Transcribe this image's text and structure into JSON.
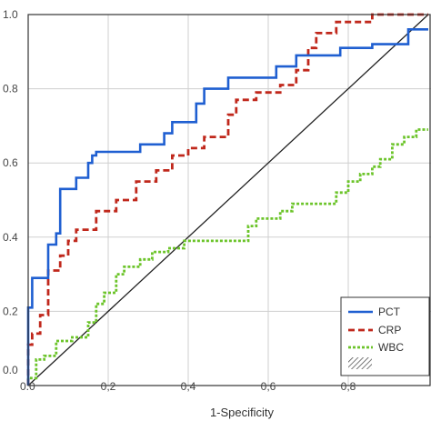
{
  "chart_data": {
    "type": "line",
    "title": "",
    "xlabel": "1-Specificity",
    "ylabel": "",
    "xlim": [
      0,
      1
    ],
    "ylim": [
      0,
      1
    ],
    "grid": true,
    "legend_position": "bottom-right",
    "x_ticks": [
      {
        "value": 0.0,
        "label": "0.0"
      },
      {
        "value": 0.2,
        "label": "0,2"
      },
      {
        "value": 0.4,
        "label": "0,4"
      },
      {
        "value": 0.6,
        "label": "0,6"
      },
      {
        "value": 0.8,
        "label": "0,8"
      }
    ],
    "y_ticks": [
      {
        "value": 0.0,
        "label": "0.0"
      },
      {
        "value": 0.2,
        "label": "0.2"
      },
      {
        "value": 0.4,
        "label": "0.4"
      },
      {
        "value": 0.6,
        "label": "0.6"
      },
      {
        "value": 0.8,
        "label": "0.8"
      },
      {
        "value": 1.0,
        "label": "1.0"
      }
    ],
    "reference_line": {
      "x": [
        0,
        1
      ],
      "y": [
        0,
        1
      ],
      "color": "#222222"
    },
    "series": [
      {
        "name": "PCT",
        "color": "#1f5fd1",
        "style": "solid",
        "points": [
          [
            0,
            0
          ],
          [
            0,
            0.21
          ],
          [
            0.01,
            0.21
          ],
          [
            0.01,
            0.29
          ],
          [
            0.05,
            0.29
          ],
          [
            0.05,
            0.38
          ],
          [
            0.07,
            0.38
          ],
          [
            0.07,
            0.41
          ],
          [
            0.08,
            0.41
          ],
          [
            0.08,
            0.53
          ],
          [
            0.12,
            0.53
          ],
          [
            0.12,
            0.56
          ],
          [
            0.15,
            0.56
          ],
          [
            0.15,
            0.6
          ],
          [
            0.16,
            0.6
          ],
          [
            0.16,
            0.62
          ],
          [
            0.17,
            0.62
          ],
          [
            0.17,
            0.63
          ],
          [
            0.28,
            0.63
          ],
          [
            0.28,
            0.65
          ],
          [
            0.34,
            0.65
          ],
          [
            0.34,
            0.68
          ],
          [
            0.36,
            0.68
          ],
          [
            0.36,
            0.71
          ],
          [
            0.42,
            0.71
          ],
          [
            0.42,
            0.76
          ],
          [
            0.44,
            0.76
          ],
          [
            0.44,
            0.8
          ],
          [
            0.5,
            0.8
          ],
          [
            0.5,
            0.83
          ],
          [
            0.62,
            0.83
          ],
          [
            0.62,
            0.86
          ],
          [
            0.67,
            0.86
          ],
          [
            0.67,
            0.89
          ],
          [
            0.78,
            0.89
          ],
          [
            0.78,
            0.91
          ],
          [
            0.86,
            0.91
          ],
          [
            0.86,
            0.92
          ],
          [
            0.95,
            0.92
          ],
          [
            0.95,
            0.96
          ],
          [
            1.0,
            0.96
          ]
        ]
      },
      {
        "name": "CRP",
        "color": "#c0281c",
        "style": "dashed",
        "points": [
          [
            0,
            0
          ],
          [
            0,
            0.11
          ],
          [
            0.01,
            0.11
          ],
          [
            0.01,
            0.14
          ],
          [
            0.03,
            0.14
          ],
          [
            0.03,
            0.19
          ],
          [
            0.05,
            0.19
          ],
          [
            0.05,
            0.31
          ],
          [
            0.08,
            0.31
          ],
          [
            0.08,
            0.35
          ],
          [
            0.1,
            0.35
          ],
          [
            0.1,
            0.39
          ],
          [
            0.12,
            0.39
          ],
          [
            0.12,
            0.42
          ],
          [
            0.17,
            0.42
          ],
          [
            0.17,
            0.47
          ],
          [
            0.22,
            0.47
          ],
          [
            0.22,
            0.5
          ],
          [
            0.27,
            0.5
          ],
          [
            0.27,
            0.55
          ],
          [
            0.32,
            0.55
          ],
          [
            0.32,
            0.58
          ],
          [
            0.36,
            0.58
          ],
          [
            0.36,
            0.62
          ],
          [
            0.4,
            0.62
          ],
          [
            0.4,
            0.64
          ],
          [
            0.44,
            0.64
          ],
          [
            0.44,
            0.67
          ],
          [
            0.5,
            0.67
          ],
          [
            0.5,
            0.73
          ],
          [
            0.52,
            0.73
          ],
          [
            0.52,
            0.77
          ],
          [
            0.57,
            0.77
          ],
          [
            0.57,
            0.79
          ],
          [
            0.63,
            0.79
          ],
          [
            0.63,
            0.81
          ],
          [
            0.67,
            0.81
          ],
          [
            0.67,
            0.85
          ],
          [
            0.7,
            0.85
          ],
          [
            0.7,
            0.91
          ],
          [
            0.72,
            0.91
          ],
          [
            0.72,
            0.95
          ],
          [
            0.77,
            0.95
          ],
          [
            0.77,
            0.98
          ],
          [
            0.86,
            0.98
          ],
          [
            0.86,
            1.0
          ],
          [
            1.0,
            1.0
          ]
        ]
      },
      {
        "name": "WBC",
        "color": "#6cc42a",
        "style": "dotted",
        "points": [
          [
            0,
            0
          ],
          [
            0,
            0.02
          ],
          [
            0.02,
            0.02
          ],
          [
            0.02,
            0.07
          ],
          [
            0.04,
            0.07
          ],
          [
            0.04,
            0.08
          ],
          [
            0.07,
            0.08
          ],
          [
            0.07,
            0.12
          ],
          [
            0.11,
            0.12
          ],
          [
            0.11,
            0.13
          ],
          [
            0.15,
            0.13
          ],
          [
            0.15,
            0.17
          ],
          [
            0.17,
            0.17
          ],
          [
            0.17,
            0.22
          ],
          [
            0.19,
            0.22
          ],
          [
            0.19,
            0.25
          ],
          [
            0.22,
            0.25
          ],
          [
            0.22,
            0.3
          ],
          [
            0.24,
            0.3
          ],
          [
            0.24,
            0.32
          ],
          [
            0.28,
            0.32
          ],
          [
            0.28,
            0.34
          ],
          [
            0.31,
            0.34
          ],
          [
            0.31,
            0.36
          ],
          [
            0.35,
            0.36
          ],
          [
            0.35,
            0.37
          ],
          [
            0.39,
            0.37
          ],
          [
            0.39,
            0.39
          ],
          [
            0.55,
            0.39
          ],
          [
            0.55,
            0.43
          ],
          [
            0.57,
            0.43
          ],
          [
            0.57,
            0.45
          ],
          [
            0.63,
            0.45
          ],
          [
            0.63,
            0.47
          ],
          [
            0.66,
            0.47
          ],
          [
            0.66,
            0.49
          ],
          [
            0.77,
            0.49
          ],
          [
            0.77,
            0.52
          ],
          [
            0.8,
            0.52
          ],
          [
            0.8,
            0.55
          ],
          [
            0.83,
            0.55
          ],
          [
            0.83,
            0.57
          ],
          [
            0.86,
            0.57
          ],
          [
            0.86,
            0.59
          ],
          [
            0.88,
            0.59
          ],
          [
            0.88,
            0.61
          ],
          [
            0.91,
            0.61
          ],
          [
            0.91,
            0.65
          ],
          [
            0.94,
            0.65
          ],
          [
            0.94,
            0.67
          ],
          [
            0.97,
            0.67
          ],
          [
            0.97,
            0.69
          ],
          [
            1.0,
            0.69
          ]
        ]
      }
    ]
  }
}
